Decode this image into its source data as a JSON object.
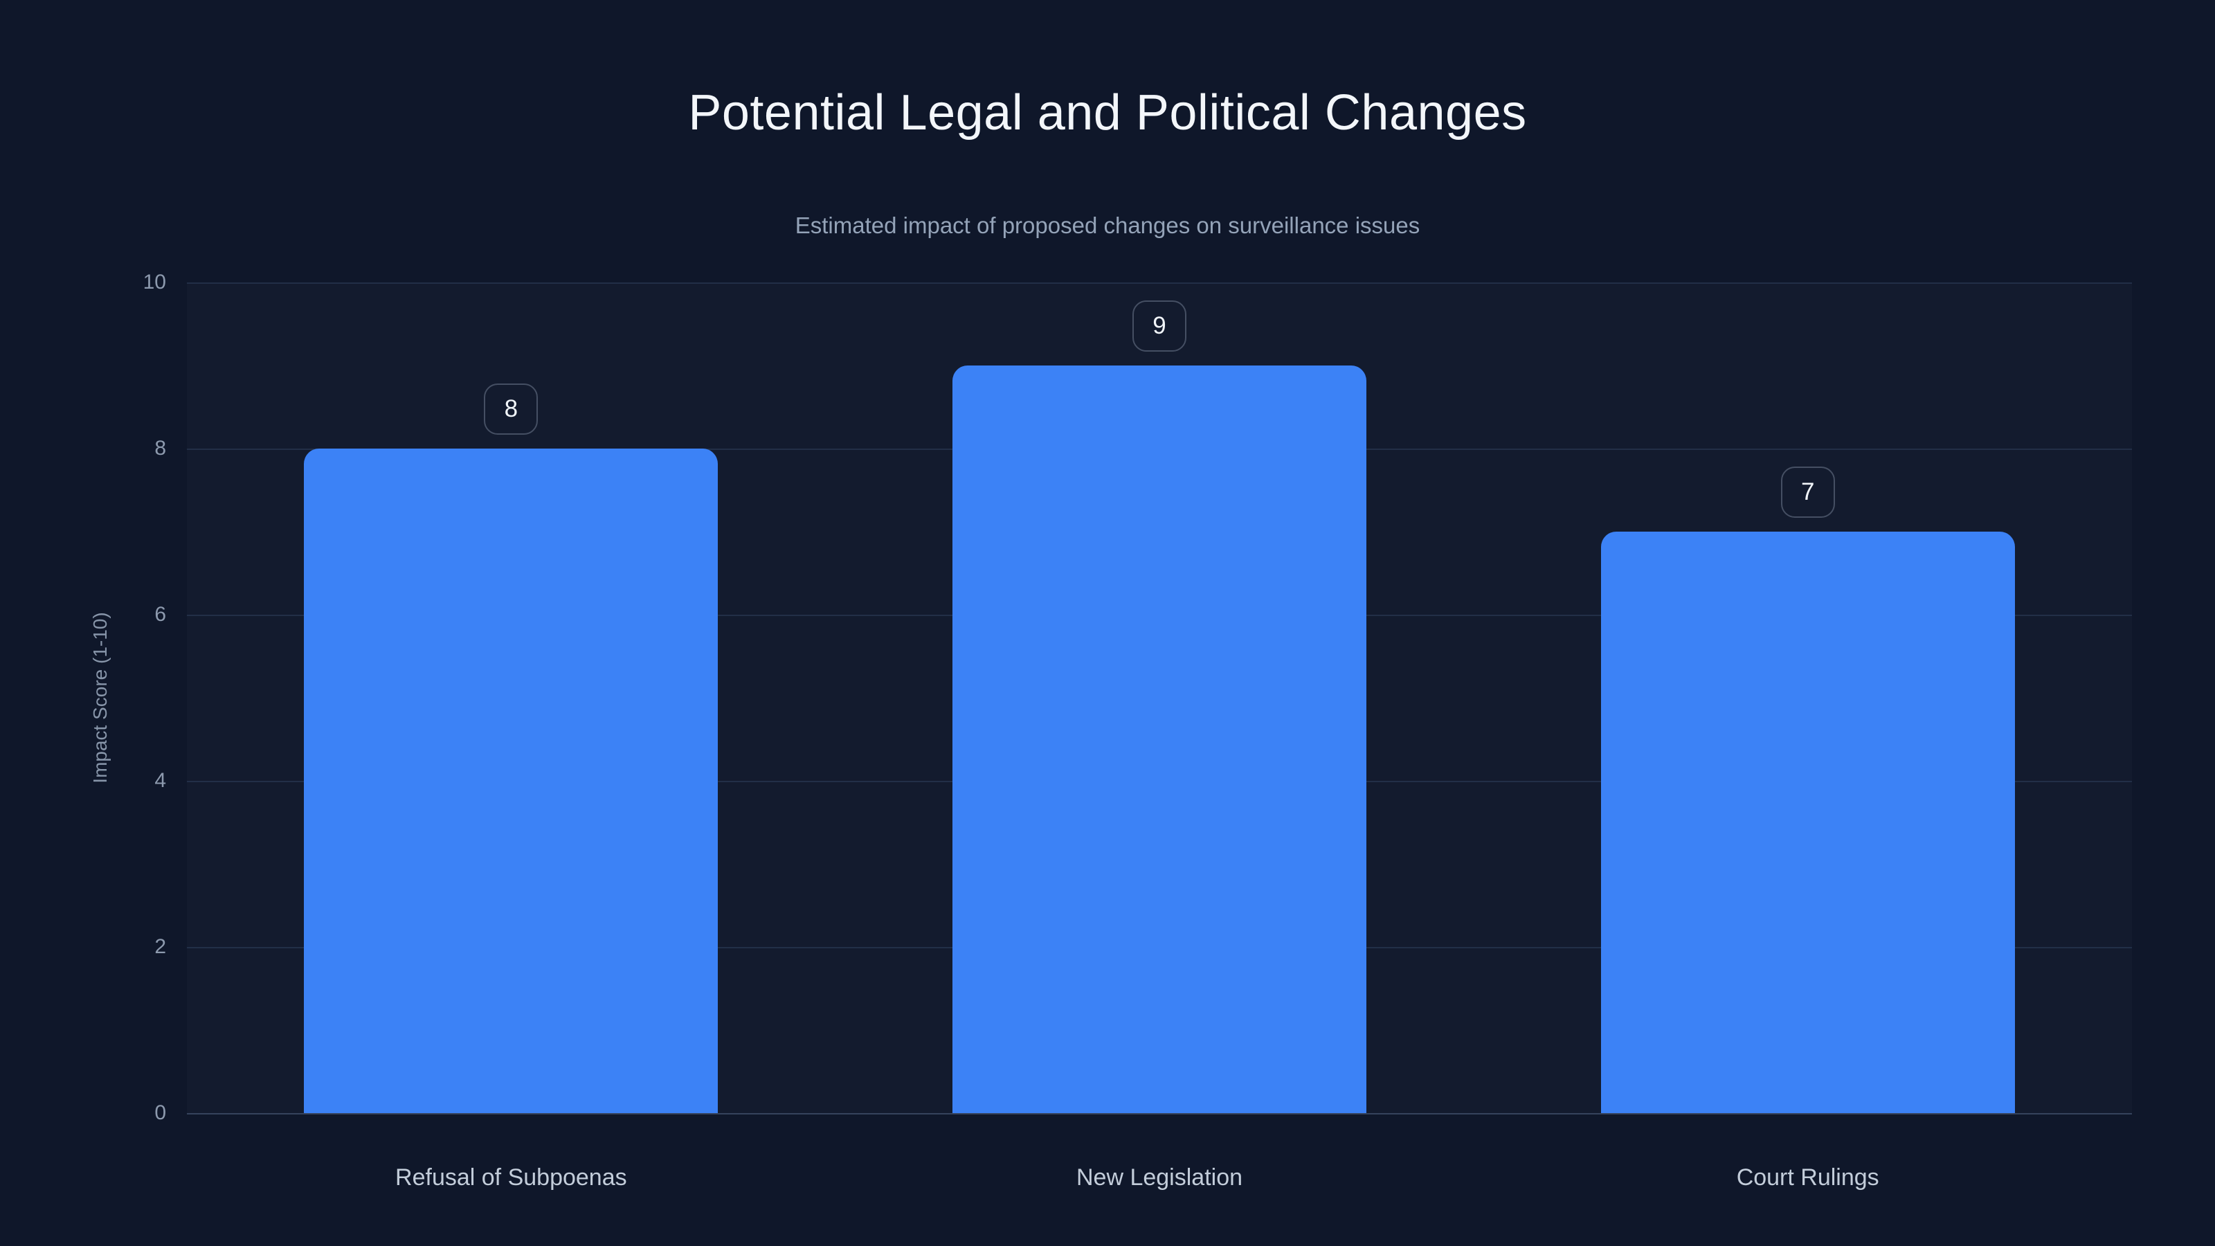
{
  "page": {
    "background_color": "#0f172a",
    "accent_color": "#3c82f6"
  },
  "chart_data": {
    "type": "bar",
    "title": "Potential Legal and Political Changes",
    "subtitle": "Estimated impact of proposed changes on surveillance issues",
    "categories": [
      "Refusal of Subpoenas",
      "New Legislation",
      "Court Rulings"
    ],
    "values": [
      8,
      9,
      7
    ],
    "value_labels": [
      "8",
      "9",
      "7"
    ],
    "xlabel": "",
    "ylabel": "Impact Score (1-10)",
    "ylim": [
      0,
      10
    ],
    "yticks": [
      0,
      2,
      4,
      6,
      8,
      10
    ],
    "grid": true,
    "legend": false,
    "bar_color": "#3c82f6",
    "title_color": "#f3f6fa",
    "subtitle_color": "#94a3b8",
    "gridline_color": "#222f47",
    "axis_line_color": "#36435c"
  }
}
